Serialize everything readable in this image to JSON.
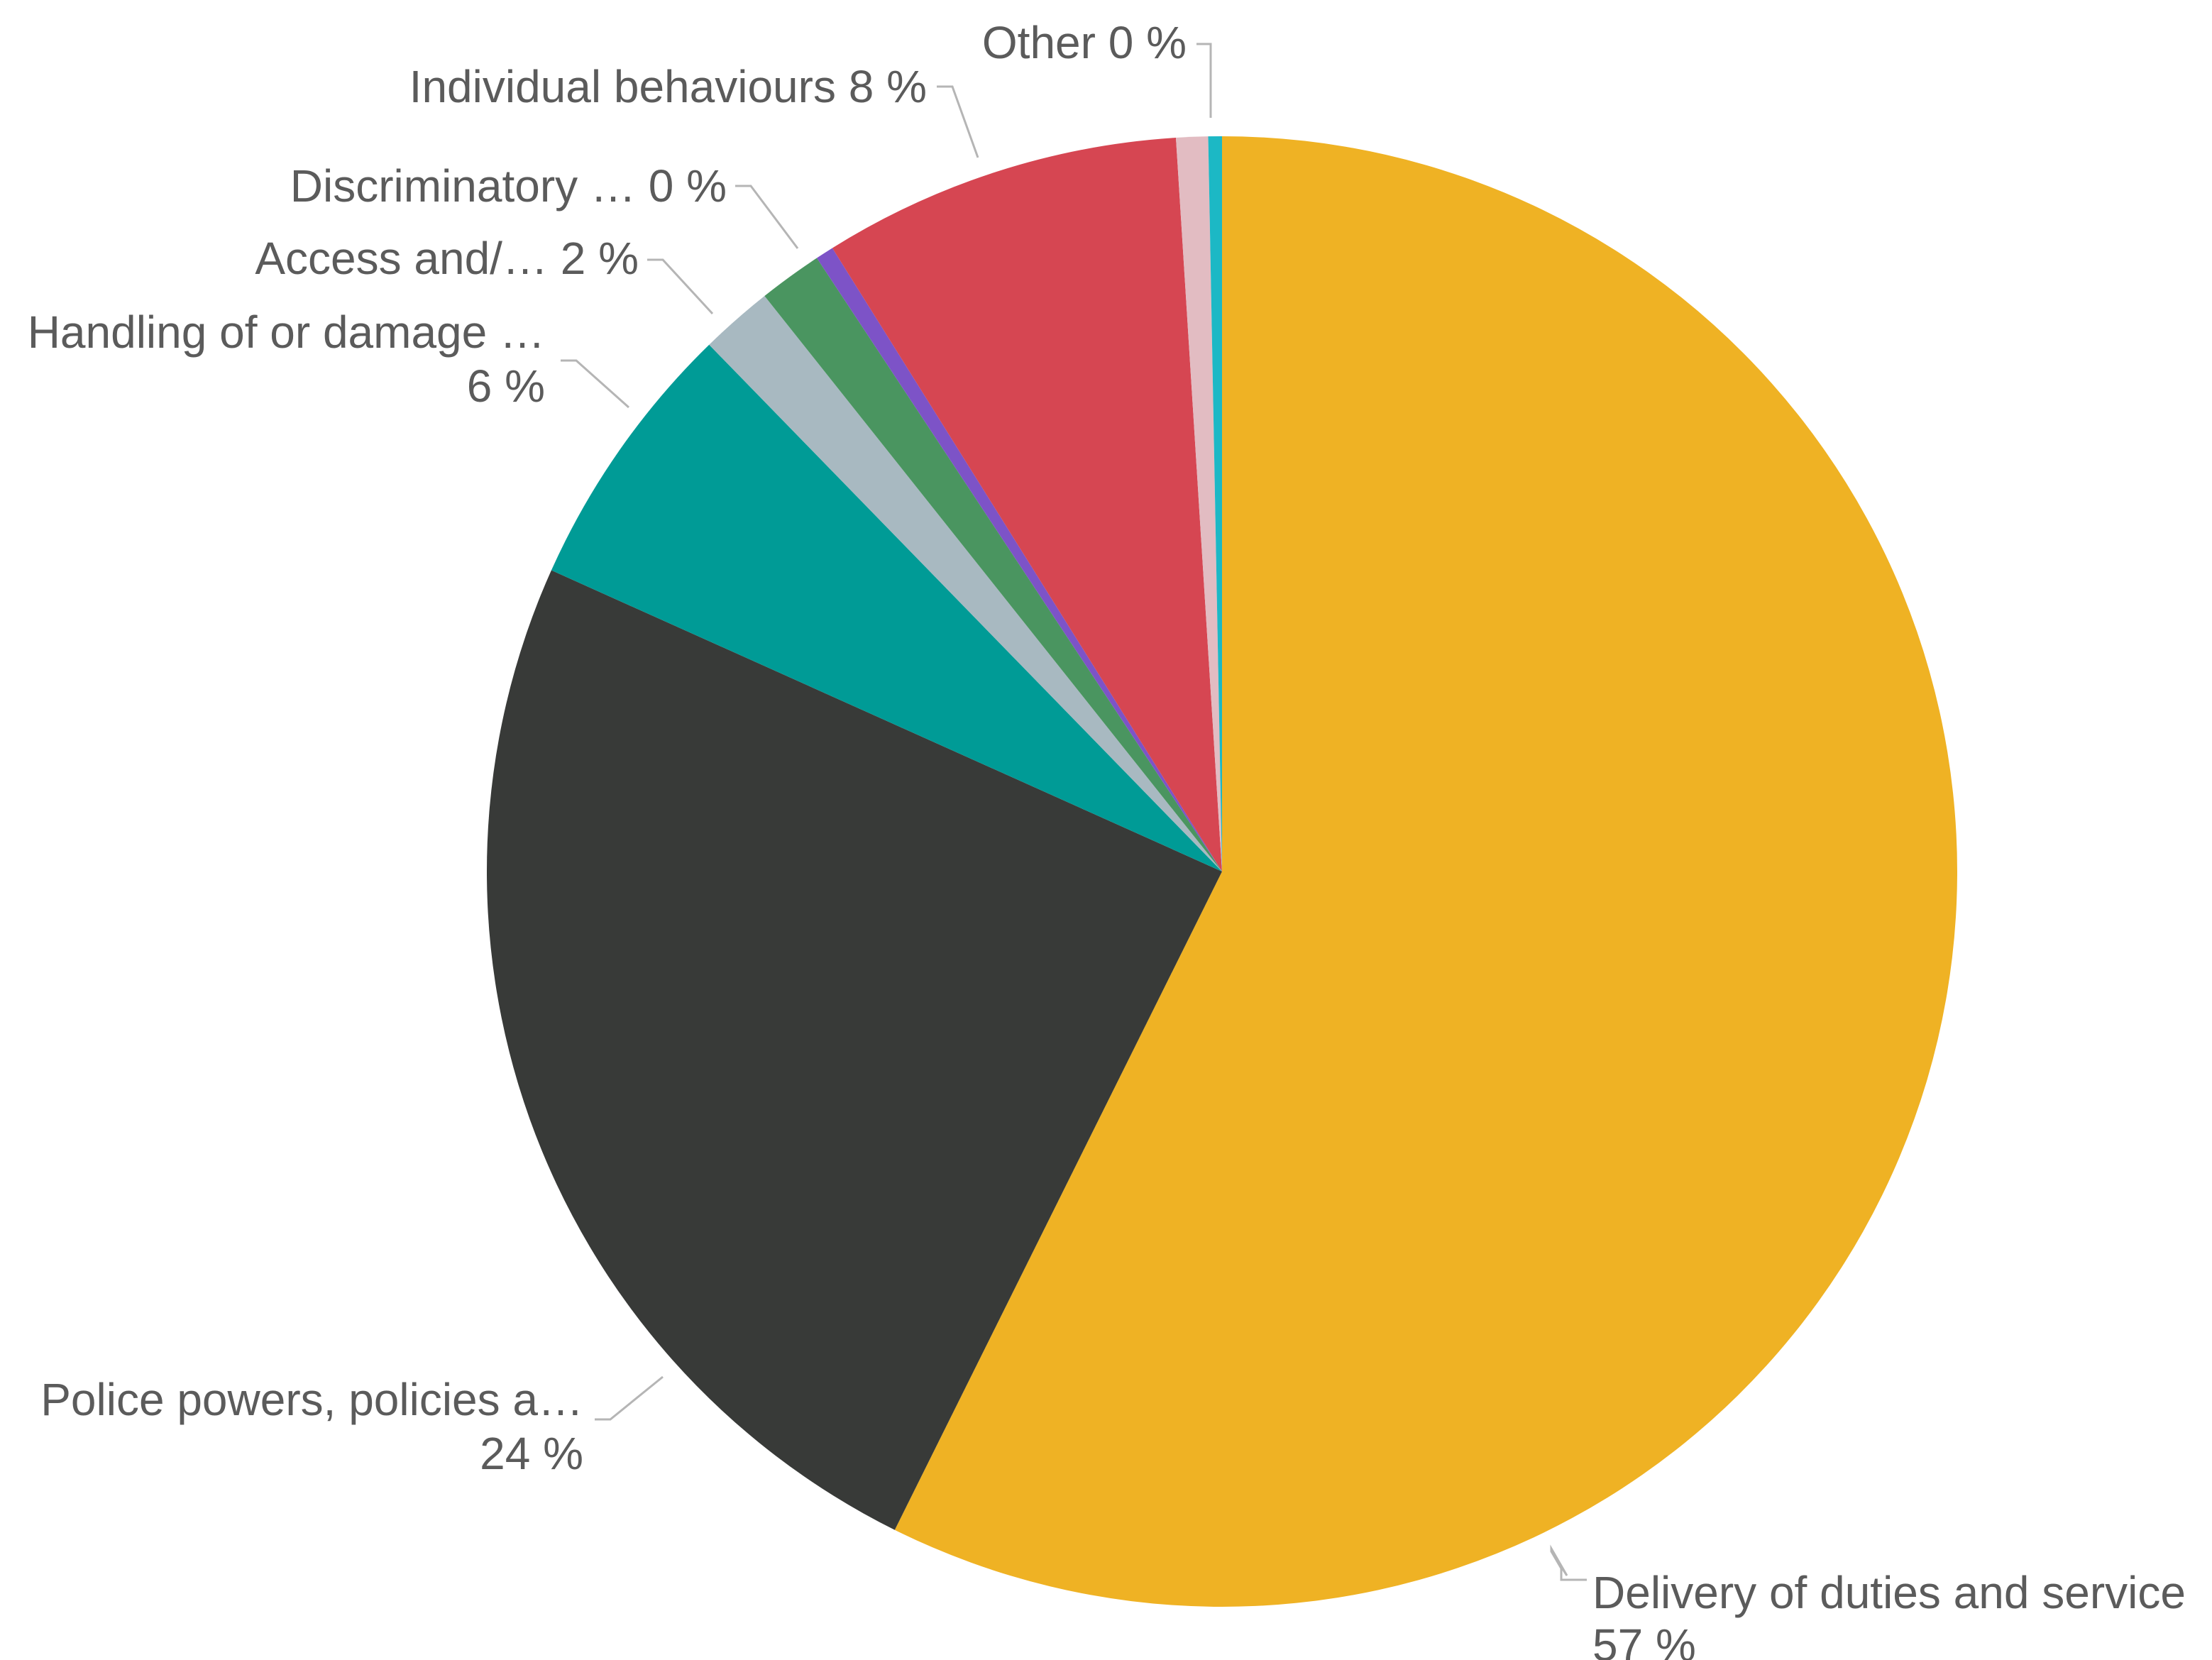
{
  "chart_data": {
    "type": "pie",
    "slices": [
      {
        "label": "Delivery of duties and service",
        "pct_label": "57 %",
        "value": 57.4,
        "color": "#efb224"
      },
      {
        "label": "Police powers, policies a…",
        "pct_label": "24 %",
        "value": 24.4,
        "color": "#383a38"
      },
      {
        "label": "Handling of or damage …",
        "pct_label": "6 %",
        "value": 6.0,
        "color": "#009b96"
      },
      {
        "label": "Access and/…",
        "pct_label": "2 %",
        "value": 1.6,
        "color": "#a8b9c1"
      },
      {
        "label": "Access and/…",
        "pct_label": "",
        "value": 1.4,
        "color": "#4a9560"
      },
      {
        "label": "Discriminatory …",
        "pct_label": "0 %",
        "value": 0.4,
        "color": "#7d53c7"
      },
      {
        "label": "Individual behaviours",
        "pct_label": "8 %",
        "value": 7.9,
        "color": "#d64652"
      },
      {
        "label": "",
        "pct_label": "",
        "value": 0.7,
        "color": "#e2bcc2"
      },
      {
        "label": "Other",
        "pct_label": "0 %",
        "value": 0.3,
        "color": "#1cb8c5"
      }
    ],
    "start_angle_deg": 0,
    "direction": "clockwise",
    "legend": "none"
  },
  "labels": [
    {
      "line1": "Other 0 %",
      "line2": ""
    },
    {
      "line1": "Individual behaviours 8 %",
      "line2": ""
    },
    {
      "line1": "Discriminatory … 0 %",
      "line2": ""
    },
    {
      "line1": "Access and/… 2 %",
      "line2": ""
    },
    {
      "line1": "Handling of or damage …",
      "line2": "6 %"
    },
    {
      "line1": "Police powers, policies a…",
      "line2": "24 %"
    },
    {
      "line1": "Delivery of duties and service",
      "line2": "57 %"
    }
  ]
}
